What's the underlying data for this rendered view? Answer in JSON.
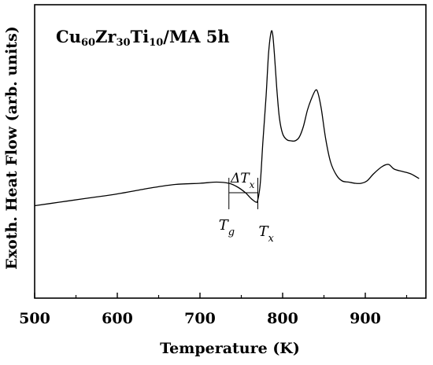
{
  "chart_data": {
    "type": "line",
    "title_parts": [
      {
        "t": "Cu",
        "sub": false
      },
      {
        "t": "60",
        "sub": true
      },
      {
        "t": "Zr",
        "sub": false
      },
      {
        "t": "30",
        "sub": true
      },
      {
        "t": "Ti",
        "sub": false
      },
      {
        "t": "10",
        "sub": true
      },
      {
        "t": "/MA 5h",
        "sub": false
      }
    ],
    "xlabel": "Temperature (K)",
    "ylabel": "Exoth. Heat Flow (arb. units)",
    "xlim": [
      500,
      970
    ],
    "ylim": [
      0,
      100
    ],
    "x_ticks": [
      500,
      600,
      700,
      800,
      900
    ],
    "x_tick_labels": [
      "500",
      "600",
      "700",
      "800",
      "900"
    ],
    "y_ticks_shown": false,
    "grid": false,
    "series": [
      {
        "x": [
          500,
          530,
          560,
          600,
          640,
          670,
          700,
          720,
          735,
          745,
          755,
          762,
          768,
          770,
          773,
          776,
          780,
          783,
          786,
          788,
          790,
          793,
          796,
          800,
          805,
          810,
          815,
          820,
          825,
          830,
          835,
          840,
          843,
          847,
          852,
          858,
          865,
          872,
          880,
          888,
          895,
          902,
          910,
          920,
          928,
          935,
          945,
          955,
          965
        ],
        "y": [
          25.5,
          27,
          28.5,
          30.5,
          33,
          34.5,
          35,
          35.5,
          35,
          33.5,
          31,
          28.5,
          27,
          28,
          35,
          52,
          72,
          90,
          99,
          98,
          90,
          75,
          63,
          56,
          53.5,
          53,
          53,
          54.5,
          59,
          66,
          71,
          74.5,
          73,
          66,
          54,
          44,
          38.5,
          36,
          35.5,
          35,
          35,
          36,
          39,
          42,
          43,
          41,
          40,
          39,
          37
        ]
      }
    ],
    "annotations": {
      "tg": {
        "symbol": "T",
        "sub": "g",
        "x": 735
      },
      "tx": {
        "symbol": "T",
        "sub": "x",
        "x": 770
      },
      "delta": {
        "symbol": "ΔT",
        "sub": "x",
        "x_from": 735,
        "x_to": 770
      }
    }
  }
}
